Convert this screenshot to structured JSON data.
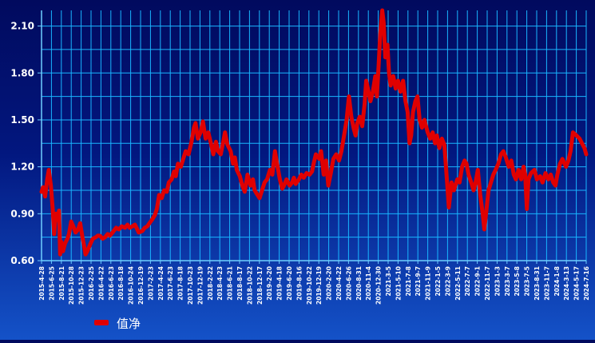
{
  "chart_data": {
    "type": "line",
    "title": "",
    "xlabel": "",
    "ylabel": "",
    "ylim": [
      0.6,
      2.2
    ],
    "y_ticks": [
      0.6,
      0.9,
      1.2,
      1.5,
      1.8,
      2.1
    ],
    "y_tick_labels": [
      "0.60",
      "0.90",
      "1.20",
      "1.50",
      "1.80",
      "2.10"
    ],
    "x_tick_labels": [
      "2015-4-28",
      "2015-6-25",
      "2015-8-21",
      "2015-10-28",
      "2015-12-23",
      "2016-2-25",
      "2016-4-22",
      "2016-6-23",
      "2016-8-18",
      "2016-10-24",
      "2016-12-19",
      "2017-2-23",
      "2017-4-24",
      "2017-6-23",
      "2017-8-18",
      "2017-10-23",
      "2017-12-19",
      "2018-2-22",
      "2018-4-23",
      "2018-6-21",
      "2018-8-17",
      "2018-10-22",
      "2018-12-17",
      "2019-2-20",
      "2019-4-18",
      "2019-6-20",
      "2019-8-16",
      "2019-10-22",
      "2019-12-19",
      "2020-2-20",
      "2020-4-22",
      "2020-6-26",
      "2020-8-31",
      "2020-11-4",
      "2020-12-30",
      "2021-3-5",
      "2021-5-10",
      "2021-7-8",
      "2021-9-7",
      "2021-11-9",
      "2022-1-5",
      "2022-3-9",
      "2022-5-11",
      "2022-7-7",
      "2022-9-1",
      "2022-11-7",
      "2023-1-3",
      "2023-3-7",
      "2023-5-8",
      "2023-7-5",
      "2023-8-31",
      "2023-11-7",
      "2024-1-8",
      "2024-3-13",
      "2024-5-17",
      "2024-7-16"
    ],
    "x_domain": [
      "2015-4-28",
      "2024-7-16"
    ],
    "grid": true,
    "legend_position": "bottom-left",
    "series": [
      {
        "name": "值净",
        "color": "#e00000",
        "points": [
          [
            "2015-4-28",
            1.04
          ],
          [
            "2015-5-8",
            1.07
          ],
          [
            "2015-5-20",
            1.01
          ],
          [
            "2015-6-2",
            1.12
          ],
          [
            "2015-6-12",
            1.18
          ],
          [
            "2015-6-25",
            1.08
          ],
          [
            "2015-7-6",
            0.93
          ],
          [
            "2015-7-15",
            0.77
          ],
          [
            "2015-7-25",
            0.9
          ],
          [
            "2015-8-5",
            0.86
          ],
          [
            "2015-8-14",
            0.92
          ],
          [
            "2015-8-21",
            0.64
          ],
          [
            "2015-8-28",
            0.72
          ],
          [
            "2015-9-8",
            0.66
          ],
          [
            "2015-9-20",
            0.71
          ],
          [
            "2015-10-5",
            0.74
          ],
          [
            "2015-10-15",
            0.77
          ],
          [
            "2015-10-28",
            0.85
          ],
          [
            "2015-11-10",
            0.82
          ],
          [
            "2015-11-25",
            0.78
          ],
          [
            "2015-12-10",
            0.8
          ],
          [
            "2015-12-23",
            0.84
          ],
          [
            "2016-1-6",
            0.75
          ],
          [
            "2016-1-15",
            0.7
          ],
          [
            "2016-1-25",
            0.64
          ],
          [
            "2016-2-5",
            0.66
          ],
          [
            "2016-2-25",
            0.71
          ],
          [
            "2016-3-10",
            0.74
          ],
          [
            "2016-3-28",
            0.75
          ],
          [
            "2016-4-10",
            0.76
          ],
          [
            "2016-4-22",
            0.76
          ],
          [
            "2016-5-10",
            0.74
          ],
          [
            "2016-5-25",
            0.75
          ],
          [
            "2016-6-10",
            0.77
          ],
          [
            "2016-6-23",
            0.76
          ],
          [
            "2016-7-10",
            0.78
          ],
          [
            "2016-8-1",
            0.81
          ],
          [
            "2016-8-18",
            0.8
          ],
          [
            "2016-9-5",
            0.82
          ],
          [
            "2016-9-25",
            0.81
          ],
          [
            "2016-10-10",
            0.83
          ],
          [
            "2016-10-24",
            0.81
          ],
          [
            "2016-11-10",
            0.82
          ],
          [
            "2016-11-25",
            0.83
          ],
          [
            "2016-12-10",
            0.8
          ],
          [
            "2016-12-19",
            0.78
          ],
          [
            "2017-1-10",
            0.79
          ],
          [
            "2017-1-25",
            0.81
          ],
          [
            "2017-2-10",
            0.82
          ],
          [
            "2017-2-23",
            0.84
          ],
          [
            "2017-3-10",
            0.86
          ],
          [
            "2017-3-28",
            0.89
          ],
          [
            "2017-4-10",
            0.93
          ],
          [
            "2017-4-24",
            1.02
          ],
          [
            "2017-5-10",
            1.0
          ],
          [
            "2017-5-25",
            1.05
          ],
          [
            "2017-6-10",
            1.04
          ],
          [
            "2017-6-23",
            1.1
          ],
          [
            "2017-7-10",
            1.12
          ],
          [
            "2017-7-25",
            1.17
          ],
          [
            "2017-8-5",
            1.14
          ],
          [
            "2017-8-18",
            1.22
          ],
          [
            "2017-9-5",
            1.2
          ],
          [
            "2017-9-20",
            1.25
          ],
          [
            "2017-10-5",
            1.3
          ],
          [
            "2017-10-23",
            1.28
          ],
          [
            "2017-11-10",
            1.36
          ],
          [
            "2017-11-25",
            1.45
          ],
          [
            "2017-12-5",
            1.48
          ],
          [
            "2017-12-19",
            1.38
          ],
          [
            "2018-1-5",
            1.42
          ],
          [
            "2018-1-20",
            1.49
          ],
          [
            "2018-2-5",
            1.38
          ],
          [
            "2018-2-22",
            1.42
          ],
          [
            "2018-3-10",
            1.35
          ],
          [
            "2018-3-25",
            1.28
          ],
          [
            "2018-4-10",
            1.36
          ],
          [
            "2018-4-23",
            1.3
          ],
          [
            "2018-5-10",
            1.28
          ],
          [
            "2018-5-25",
            1.36
          ],
          [
            "2018-6-5",
            1.42
          ],
          [
            "2018-6-21",
            1.34
          ],
          [
            "2018-7-10",
            1.3
          ],
          [
            "2018-7-25",
            1.22
          ],
          [
            "2018-8-5",
            1.26
          ],
          [
            "2018-8-17",
            1.18
          ],
          [
            "2018-9-5",
            1.14
          ],
          [
            "2018-9-20",
            1.08
          ],
          [
            "2018-10-5",
            1.04
          ],
          [
            "2018-10-22",
            1.15
          ],
          [
            "2018-11-10",
            1.08
          ],
          [
            "2018-11-25",
            1.12
          ],
          [
            "2018-12-5",
            1.05
          ],
          [
            "2018-12-17",
            1.03
          ],
          [
            "2019-1-5",
            1.0
          ],
          [
            "2019-1-20",
            1.05
          ],
          [
            "2019-2-5",
            1.1
          ],
          [
            "2019-2-20",
            1.12
          ],
          [
            "2019-3-10",
            1.18
          ],
          [
            "2019-3-25",
            1.15
          ],
          [
            "2019-4-10",
            1.3
          ],
          [
            "2019-4-18",
            1.25
          ],
          [
            "2019-5-10",
            1.12
          ],
          [
            "2019-5-25",
            1.06
          ],
          [
            "2019-6-5",
            1.08
          ],
          [
            "2019-6-20",
            1.12
          ],
          [
            "2019-7-10",
            1.08
          ],
          [
            "2019-7-25",
            1.1
          ],
          [
            "2019-8-5",
            1.13
          ],
          [
            "2019-8-16",
            1.09
          ],
          [
            "2019-9-5",
            1.12
          ],
          [
            "2019-9-20",
            1.15
          ],
          [
            "2019-10-5",
            1.13
          ],
          [
            "2019-10-22",
            1.16
          ],
          [
            "2019-11-10",
            1.15
          ],
          [
            "2019-11-25",
            1.17
          ],
          [
            "2019-12-5",
            1.22
          ],
          [
            "2019-12-19",
            1.28
          ],
          [
            "2020-1-10",
            1.25
          ],
          [
            "2020-1-20",
            1.3
          ],
          [
            "2020-2-5",
            1.15
          ],
          [
            "2020-2-20",
            1.24
          ],
          [
            "2020-3-5",
            1.08
          ],
          [
            "2020-3-20",
            1.16
          ],
          [
            "2020-4-5",
            1.25
          ],
          [
            "2020-4-22",
            1.28
          ],
          [
            "2020-5-10",
            1.24
          ],
          [
            "2020-5-25",
            1.3
          ],
          [
            "2020-6-10",
            1.4
          ],
          [
            "2020-6-26",
            1.5
          ],
          [
            "2020-7-10",
            1.65
          ],
          [
            "2020-7-25",
            1.52
          ],
          [
            "2020-8-10",
            1.44
          ],
          [
            "2020-8-20",
            1.4
          ],
          [
            "2020-8-31",
            1.48
          ],
          [
            "2020-9-15",
            1.52
          ],
          [
            "2020-9-30",
            1.46
          ],
          [
            "2020-10-15",
            1.6
          ],
          [
            "2020-10-25",
            1.75
          ],
          [
            "2020-11-4",
            1.7
          ],
          [
            "2020-11-20",
            1.62
          ],
          [
            "2020-12-5",
            1.68
          ],
          [
            "2020-12-20",
            1.78
          ],
          [
            "2020-12-30",
            1.65
          ],
          [
            "2021-1-10",
            1.85
          ],
          [
            "2021-1-20",
            2.05
          ],
          [
            "2021-2-1",
            2.2
          ],
          [
            "2021-2-10",
            2.12
          ],
          [
            "2021-2-20",
            1.9
          ],
          [
            "2021-3-5",
            1.98
          ],
          [
            "2021-3-15",
            1.8
          ],
          [
            "2021-3-25",
            1.72
          ],
          [
            "2021-4-10",
            1.78
          ],
          [
            "2021-4-25",
            1.7
          ],
          [
            "2021-5-10",
            1.75
          ],
          [
            "2021-5-25",
            1.68
          ],
          [
            "2021-6-10",
            1.75
          ],
          [
            "2021-6-25",
            1.62
          ],
          [
            "2021-7-8",
            1.55
          ],
          [
            "2021-7-20",
            1.35
          ],
          [
            "2021-7-30",
            1.4
          ],
          [
            "2021-8-10",
            1.55
          ],
          [
            "2021-8-25",
            1.62
          ],
          [
            "2021-9-7",
            1.65
          ],
          [
            "2021-9-20",
            1.5
          ],
          [
            "2021-10-5",
            1.45
          ],
          [
            "2021-10-20",
            1.5
          ],
          [
            "2021-11-9",
            1.42
          ],
          [
            "2021-11-25",
            1.38
          ],
          [
            "2021-12-10",
            1.42
          ],
          [
            "2021-12-25",
            1.35
          ],
          [
            "2022-1-5",
            1.4
          ],
          [
            "2022-1-20",
            1.32
          ],
          [
            "2022-2-5",
            1.38
          ],
          [
            "2022-2-20",
            1.34
          ],
          [
            "2022-3-9",
            1.1
          ],
          [
            "2022-3-20",
            0.94
          ],
          [
            "2022-4-5",
            1.1
          ],
          [
            "2022-4-20",
            1.05
          ],
          [
            "2022-5-11",
            1.12
          ],
          [
            "2022-5-25",
            1.1
          ],
          [
            "2022-6-10",
            1.2
          ],
          [
            "2022-6-25",
            1.24
          ],
          [
            "2022-7-7",
            1.22
          ],
          [
            "2022-7-20",
            1.15
          ],
          [
            "2022-8-5",
            1.1
          ],
          [
            "2022-8-20",
            1.05
          ],
          [
            "2022-9-1",
            1.1
          ],
          [
            "2022-9-15",
            1.18
          ],
          [
            "2022-9-30",
            1.02
          ],
          [
            "2022-10-15",
            0.9
          ],
          [
            "2022-10-25",
            0.8
          ],
          [
            "2022-11-7",
            0.92
          ],
          [
            "2022-11-20",
            1.05
          ],
          [
            "2022-12-5",
            1.1
          ],
          [
            "2022-12-20",
            1.15
          ],
          [
            "2023-1-3",
            1.18
          ],
          [
            "2023-1-20",
            1.22
          ],
          [
            "2023-2-5",
            1.28
          ],
          [
            "2023-2-20",
            1.3
          ],
          [
            "2023-3-7",
            1.26
          ],
          [
            "2023-3-25",
            1.2
          ],
          [
            "2023-4-10",
            1.24
          ],
          [
            "2023-4-25",
            1.15
          ],
          [
            "2023-5-8",
            1.12
          ],
          [
            "2023-5-25",
            1.18
          ],
          [
            "2023-6-10",
            1.12
          ],
          [
            "2023-6-25",
            1.2
          ],
          [
            "2023-7-5",
            1.15
          ],
          [
            "2023-7-15",
            0.93
          ],
          [
            "2023-7-25",
            1.12
          ],
          [
            "2023-8-10",
            1.16
          ],
          [
            "2023-8-31",
            1.18
          ],
          [
            "2023-9-15",
            1.12
          ],
          [
            "2023-10-5",
            1.14
          ],
          [
            "2023-10-20",
            1.1
          ],
          [
            "2023-11-7",
            1.16
          ],
          [
            "2023-11-25",
            1.12
          ],
          [
            "2023-12-10",
            1.15
          ],
          [
            "2023-12-25",
            1.1
          ],
          [
            "2024-1-8",
            1.08
          ],
          [
            "2024-1-20",
            1.15
          ],
          [
            "2024-2-5",
            1.22
          ],
          [
            "2024-2-20",
            1.25
          ],
          [
            "2024-3-13",
            1.2
          ],
          [
            "2024-3-28",
            1.24
          ],
          [
            "2024-4-10",
            1.3
          ],
          [
            "2024-4-25",
            1.42
          ],
          [
            "2024-5-17",
            1.4
          ],
          [
            "2024-6-5",
            1.38
          ],
          [
            "2024-6-20",
            1.35
          ],
          [
            "2024-7-5",
            1.32
          ],
          [
            "2024-7-16",
            1.28
          ]
        ]
      }
    ]
  },
  "legend": {
    "label": "值净",
    "color": "#e00000"
  },
  "colors": {
    "grid": "#19b6ff",
    "axis": "#6fcfff",
    "tick_text": "#ffffff",
    "line": "#e00000"
  }
}
